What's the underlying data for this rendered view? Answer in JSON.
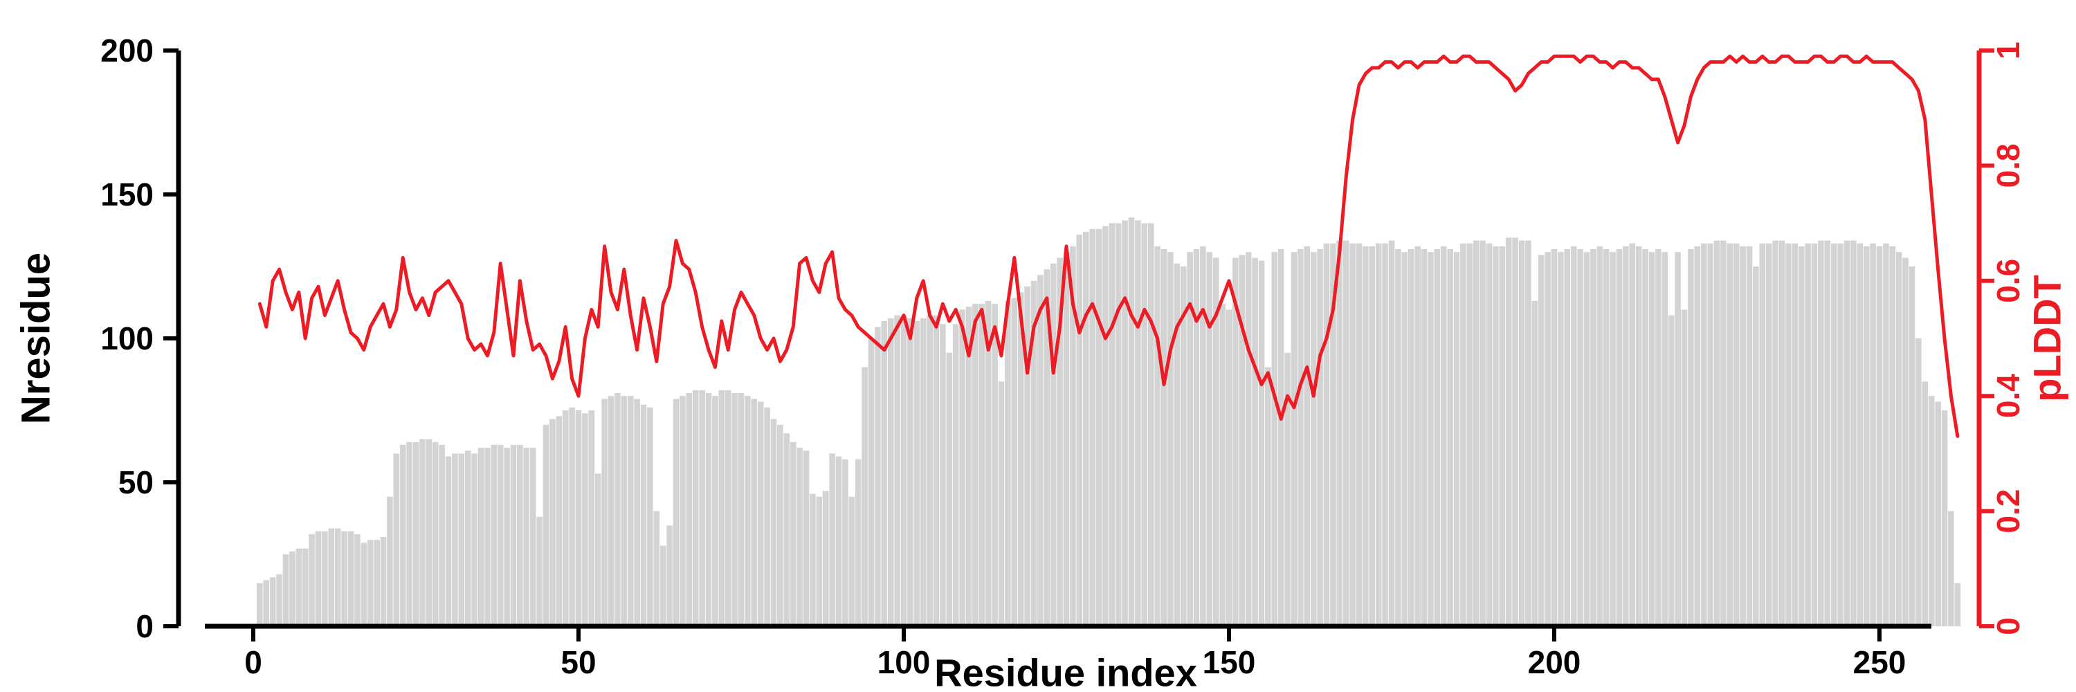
{
  "chart_data": {
    "type": "bar+line",
    "title": "",
    "xlabel": "Residue index",
    "ylabel_left": "Nresidue",
    "ylabel_right": "pLDDT",
    "x_start": 1,
    "xlim": [
      0,
      262
    ],
    "ylim_left": [
      0,
      200
    ],
    "ylim_right": [
      0,
      1
    ],
    "x_ticks": [
      0,
      50,
      100,
      150,
      200,
      250
    ],
    "y_ticks_left": [
      0,
      50,
      100,
      150,
      200
    ],
    "y_ticks_right": [
      0,
      0.2,
      0.4,
      0.6,
      0.8,
      1
    ],
    "grid": false,
    "legend": "none",
    "colors": {
      "bar": "#d3d3d3",
      "line": "#ed1c24",
      "axis_left": "#000000",
      "axis_right": "#ed1c24"
    },
    "series": [
      {
        "name": "Nresidue",
        "type": "bar",
        "axis": "left",
        "color": "#d3d3d3",
        "values": [
          15,
          16,
          17,
          18,
          25,
          26,
          27,
          27,
          32,
          33,
          33,
          34,
          34,
          33,
          33,
          32,
          29,
          30,
          30,
          31,
          45,
          60,
          63,
          64,
          64,
          65,
          65,
          64,
          63,
          59,
          60,
          60,
          61,
          60,
          62,
          62,
          63,
          63,
          62,
          63,
          63,
          62,
          62,
          38,
          70,
          72,
          73,
          75,
          76,
          75,
          74,
          75,
          53,
          79,
          80,
          81,
          80,
          80,
          79,
          77,
          76,
          40,
          28,
          35,
          79,
          80,
          81,
          82,
          82,
          81,
          80,
          82,
          82,
          81,
          81,
          80,
          79,
          78,
          76,
          72,
          70,
          67,
          64,
          62,
          61,
          46,
          45,
          47,
          60,
          59,
          58,
          45,
          58,
          90,
          100,
          104,
          106,
          107,
          108,
          108,
          107,
          106,
          107,
          108,
          108,
          105,
          95,
          105,
          110,
          111,
          112,
          112,
          113,
          112,
          85,
          113,
          114,
          116,
          118,
          120,
          122,
          124,
          126,
          128,
          130,
          132,
          136,
          137,
          138,
          138,
          139,
          140,
          140,
          141,
          142,
          141,
          140,
          140,
          132,
          131,
          130,
          126,
          125,
          130,
          131,
          132,
          130,
          128,
          112,
          110,
          128,
          129,
          130,
          128,
          127,
          90,
          130,
          131,
          95,
          130,
          131,
          132,
          130,
          131,
          133,
          133,
          134,
          134,
          133,
          133,
          132,
          132,
          133,
          133,
          134,
          131,
          130,
          131,
          132,
          131,
          130,
          131,
          132,
          131,
          130,
          133,
          133,
          134,
          134,
          133,
          132,
          132,
          135,
          135,
          134,
          134,
          113,
          129,
          130,
          131,
          130,
          131,
          132,
          131,
          130,
          131,
          132,
          131,
          130,
          131,
          132,
          133,
          132,
          131,
          130,
          131,
          130,
          108,
          130,
          110,
          131,
          132,
          133,
          133,
          134,
          134,
          133,
          133,
          132,
          132,
          125,
          133,
          133,
          134,
          134,
          133,
          133,
          132,
          133,
          133,
          134,
          134,
          133,
          133,
          134,
          134,
          133,
          132,
          133,
          132,
          133,
          132,
          130,
          128,
          125,
          100,
          85,
          80,
          78,
          75,
          40,
          15
        ]
      },
      {
        "name": "pLDDT",
        "type": "line",
        "axis": "right",
        "color": "#ed1c24",
        "values": [
          0.56,
          0.52,
          0.6,
          0.62,
          0.58,
          0.55,
          0.58,
          0.5,
          0.57,
          0.59,
          0.54,
          0.57,
          0.6,
          0.55,
          0.51,
          0.5,
          0.48,
          0.52,
          0.54,
          0.56,
          0.52,
          0.55,
          0.64,
          0.58,
          0.55,
          0.57,
          0.54,
          0.58,
          0.59,
          0.6,
          0.58,
          0.56,
          0.5,
          0.48,
          0.49,
          0.47,
          0.51,
          0.63,
          0.55,
          0.47,
          0.6,
          0.53,
          0.48,
          0.49,
          0.47,
          0.43,
          0.46,
          0.52,
          0.43,
          0.4,
          0.5,
          0.55,
          0.52,
          0.66,
          0.58,
          0.55,
          0.62,
          0.54,
          0.48,
          0.57,
          0.52,
          0.46,
          0.56,
          0.59,
          0.67,
          0.63,
          0.62,
          0.58,
          0.52,
          0.48,
          0.45,
          0.53,
          0.48,
          0.55,
          0.58,
          0.56,
          0.54,
          0.5,
          0.48,
          0.5,
          0.46,
          0.48,
          0.52,
          0.63,
          0.64,
          0.6,
          0.58,
          0.63,
          0.65,
          0.57,
          0.55,
          0.54,
          0.52,
          0.51,
          0.5,
          0.49,
          0.48,
          0.5,
          0.52,
          0.54,
          0.5,
          0.57,
          0.6,
          0.54,
          0.52,
          0.56,
          0.53,
          0.55,
          0.52,
          0.47,
          0.53,
          0.55,
          0.48,
          0.52,
          0.47,
          0.56,
          0.64,
          0.54,
          0.44,
          0.52,
          0.55,
          0.57,
          0.44,
          0.52,
          0.66,
          0.56,
          0.51,
          0.54,
          0.56,
          0.53,
          0.5,
          0.52,
          0.55,
          0.57,
          0.54,
          0.52,
          0.55,
          0.53,
          0.5,
          0.42,
          0.48,
          0.52,
          0.54,
          0.56,
          0.53,
          0.55,
          0.52,
          0.54,
          0.57,
          0.6,
          0.56,
          0.52,
          0.48,
          0.45,
          0.42,
          0.44,
          0.4,
          0.36,
          0.4,
          0.38,
          0.42,
          0.45,
          0.4,
          0.47,
          0.5,
          0.55,
          0.65,
          0.78,
          0.88,
          0.94,
          0.96,
          0.97,
          0.97,
          0.98,
          0.98,
          0.97,
          0.98,
          0.98,
          0.97,
          0.98,
          0.98,
          0.98,
          0.99,
          0.98,
          0.98,
          0.99,
          0.99,
          0.98,
          0.98,
          0.98,
          0.97,
          0.96,
          0.95,
          0.93,
          0.94,
          0.96,
          0.97,
          0.98,
          0.98,
          0.99,
          0.99,
          0.99,
          0.99,
          0.98,
          0.99,
          0.99,
          0.98,
          0.98,
          0.97,
          0.98,
          0.98,
          0.97,
          0.97,
          0.96,
          0.95,
          0.95,
          0.92,
          0.88,
          0.84,
          0.87,
          0.92,
          0.95,
          0.97,
          0.98,
          0.98,
          0.98,
          0.99,
          0.98,
          0.99,
          0.98,
          0.98,
          0.99,
          0.98,
          0.98,
          0.99,
          0.99,
          0.98,
          0.98,
          0.98,
          0.99,
          0.99,
          0.98,
          0.98,
          0.99,
          0.99,
          0.98,
          0.98,
          0.99,
          0.98,
          0.98,
          0.98,
          0.98,
          0.97,
          0.96,
          0.95,
          0.93,
          0.88,
          0.75,
          0.62,
          0.5,
          0.4,
          0.33
        ]
      }
    ]
  }
}
